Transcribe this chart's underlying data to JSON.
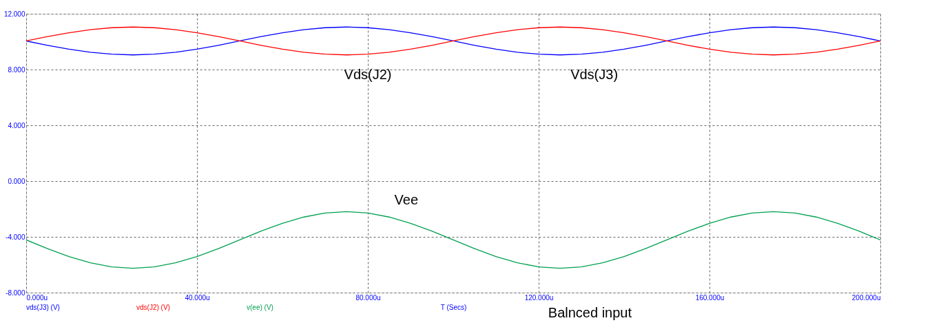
{
  "chart_data": {
    "type": "line",
    "xlabel": "T (Secs)",
    "x": [
      0,
      5,
      10,
      15,
      20,
      25,
      30,
      35,
      40,
      45,
      50,
      55,
      60,
      65,
      70,
      75,
      80,
      85,
      90,
      95,
      100,
      105,
      110,
      115,
      120,
      125,
      130,
      135,
      140,
      145,
      150,
      155,
      160,
      165,
      170,
      175,
      180,
      185,
      190,
      195,
      200
    ],
    "series": [
      {
        "name": "vds(J3) (V)",
        "color": "#0000ff",
        "values": [
          10.05,
          9.74,
          9.46,
          9.24,
          9.1,
          9.05,
          9.1,
          9.24,
          9.46,
          9.74,
          10.05,
          10.36,
          10.64,
          10.86,
          11.0,
          11.05,
          11.0,
          10.86,
          10.64,
          10.36,
          10.05,
          9.74,
          9.46,
          9.24,
          9.1,
          9.05,
          9.1,
          9.24,
          9.46,
          9.74,
          10.05,
          10.36,
          10.64,
          10.86,
          11.0,
          11.05,
          11.0,
          10.86,
          10.64,
          10.36,
          10.05
        ]
      },
      {
        "name": "vds(J2) (V)",
        "color": "#ff0000",
        "values": [
          10.05,
          10.36,
          10.64,
          10.86,
          11.0,
          11.05,
          11.0,
          10.86,
          10.64,
          10.36,
          10.05,
          9.74,
          9.46,
          9.24,
          9.1,
          9.05,
          9.1,
          9.24,
          9.46,
          9.74,
          10.05,
          10.36,
          10.64,
          10.86,
          11.0,
          11.05,
          11.0,
          10.86,
          10.64,
          10.36,
          10.05,
          9.74,
          9.46,
          9.24,
          9.1,
          9.05,
          9.1,
          9.24,
          9.46,
          9.74,
          10.05
        ]
      },
      {
        "name": "v(ee) (V)",
        "color": "#00a050",
        "values": [
          -4.22,
          -4.85,
          -5.41,
          -5.86,
          -6.15,
          -6.25,
          -6.15,
          -5.86,
          -5.41,
          -4.85,
          -4.22,
          -3.59,
          -3.03,
          -2.58,
          -2.29,
          -2.19,
          -2.29,
          -2.58,
          -3.03,
          -3.59,
          -4.22,
          -4.85,
          -5.41,
          -5.86,
          -6.15,
          -6.25,
          -6.15,
          -5.86,
          -5.41,
          -4.85,
          -4.22,
          -3.59,
          -3.03,
          -2.58,
          -2.29,
          -2.19,
          -2.29,
          -2.58,
          -3.03,
          -3.59,
          -4.22
        ]
      }
    ],
    "xlim": [
      0,
      200
    ],
    "xticks": [
      {
        "value": 0,
        "label": "0.000u"
      },
      {
        "value": 40,
        "label": "40.000u"
      },
      {
        "value": 80,
        "label": "80.000u"
      },
      {
        "value": 120,
        "label": "120.000u"
      },
      {
        "value": 160,
        "label": "160.000u"
      },
      {
        "value": 200,
        "label": "200.000u"
      }
    ],
    "ylim": [
      -8,
      12
    ],
    "yticks": [
      {
        "value": -8,
        "label": "-8.000"
      },
      {
        "value": -4,
        "label": "-4.000"
      },
      {
        "value": 0,
        "label": "0.000"
      },
      {
        "value": 4,
        "label": "4.000"
      },
      {
        "value": 8,
        "label": "8.000"
      },
      {
        "value": 12,
        "label": "12.000"
      }
    ],
    "grid": true,
    "legend": "bottom left",
    "marker": "none",
    "line_style": "solid",
    "annotations": [
      "Vds(J2)",
      "Vds(J3)",
      "Vee",
      "Balnced input"
    ]
  }
}
